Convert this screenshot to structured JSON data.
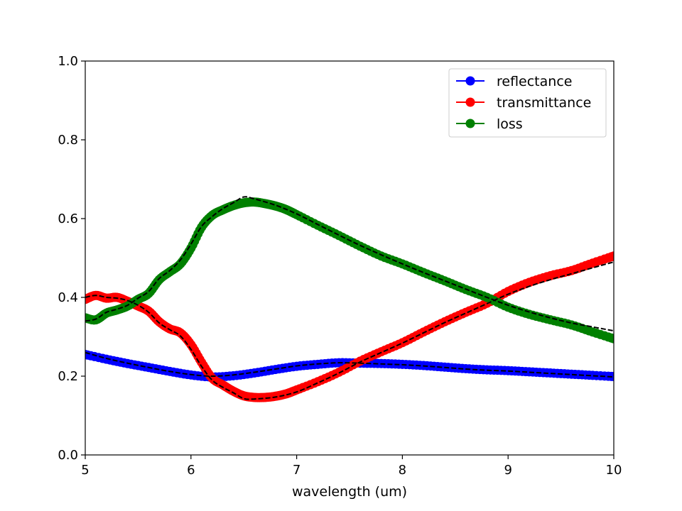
{
  "chart_data": {
    "type": "line",
    "title": "",
    "xlabel": "wavelength (um)",
    "ylabel": "",
    "xlim": [
      5,
      10
    ],
    "ylim": [
      0.0,
      1.0
    ],
    "xticks": [
      "5",
      "6",
      "7",
      "8",
      "9",
      "10"
    ],
    "yticks": [
      "0.0",
      "0.2",
      "0.4",
      "0.6",
      "0.8",
      "1.0"
    ],
    "grid": false,
    "legend_position": "top-right",
    "series": [
      {
        "name": "reflectance",
        "color": "#0000ff",
        "marker": "circle",
        "x": [
          5.0,
          5.2,
          5.4,
          5.6,
          5.8,
          6.0,
          6.2,
          6.4,
          6.6,
          6.8,
          7.0,
          7.2,
          7.4,
          7.6,
          7.8,
          8.0,
          8.2,
          8.4,
          8.6,
          8.8,
          9.0,
          9.2,
          9.4,
          9.6,
          9.8,
          10.0
        ],
        "y": [
          0.255,
          0.243,
          0.232,
          0.222,
          0.212,
          0.203,
          0.198,
          0.201,
          0.208,
          0.217,
          0.225,
          0.23,
          0.234,
          0.233,
          0.232,
          0.23,
          0.227,
          0.223,
          0.219,
          0.216,
          0.214,
          0.211,
          0.208,
          0.205,
          0.202,
          0.199
        ]
      },
      {
        "name": "transmittance",
        "color": "#ff0000",
        "marker": "circle",
        "x": [
          5.0,
          5.1,
          5.2,
          5.3,
          5.4,
          5.5,
          5.6,
          5.7,
          5.8,
          5.9,
          6.0,
          6.1,
          6.2,
          6.3,
          6.4,
          6.5,
          6.6,
          6.7,
          6.8,
          6.9,
          7.0,
          7.2,
          7.4,
          7.6,
          7.8,
          8.0,
          8.2,
          8.4,
          8.6,
          8.8,
          9.0,
          9.2,
          9.4,
          9.6,
          9.8,
          10.0
        ],
        "y": [
          0.395,
          0.405,
          0.398,
          0.4,
          0.39,
          0.378,
          0.365,
          0.338,
          0.32,
          0.31,
          0.28,
          0.235,
          0.195,
          0.178,
          0.162,
          0.15,
          0.146,
          0.146,
          0.149,
          0.155,
          0.165,
          0.186,
          0.21,
          0.238,
          0.262,
          0.285,
          0.312,
          0.338,
          0.362,
          0.385,
          0.415,
          0.438,
          0.455,
          0.468,
          0.487,
          0.505
        ]
      },
      {
        "name": "loss",
        "color": "#008000",
        "marker": "circle",
        "x": [
          5.0,
          5.1,
          5.2,
          5.3,
          5.4,
          5.5,
          5.6,
          5.7,
          5.8,
          5.9,
          6.0,
          6.1,
          6.2,
          6.3,
          6.4,
          6.5,
          6.6,
          6.7,
          6.8,
          6.9,
          7.0,
          7.2,
          7.4,
          7.6,
          7.8,
          8.0,
          8.2,
          8.4,
          8.6,
          8.8,
          9.0,
          9.2,
          9.4,
          9.6,
          9.8,
          10.0
        ],
        "y": [
          0.348,
          0.343,
          0.36,
          0.368,
          0.378,
          0.395,
          0.41,
          0.445,
          0.465,
          0.485,
          0.525,
          0.578,
          0.608,
          0.622,
          0.633,
          0.64,
          0.642,
          0.638,
          0.632,
          0.623,
          0.61,
          0.583,
          0.557,
          0.53,
          0.505,
          0.485,
          0.463,
          0.442,
          0.42,
          0.4,
          0.375,
          0.357,
          0.343,
          0.33,
          0.312,
          0.295
        ]
      },
      {
        "name": "",
        "color": "#000000",
        "style": "dashed",
        "x": [
          5.0,
          5.2,
          5.4,
          5.6,
          5.8,
          6.0,
          6.2,
          6.4,
          6.6,
          6.8,
          7.0,
          7.2,
          7.4,
          7.6,
          7.8,
          8.0,
          8.2,
          8.4,
          8.6,
          8.8,
          9.0,
          9.2,
          9.4,
          9.6,
          9.8,
          10.0
        ],
        "y": [
          0.26,
          0.245,
          0.233,
          0.222,
          0.212,
          0.204,
          0.2,
          0.203,
          0.21,
          0.218,
          0.226,
          0.231,
          0.234,
          0.233,
          0.231,
          0.229,
          0.226,
          0.222,
          0.218,
          0.215,
          0.213,
          0.21,
          0.207,
          0.204,
          0.201,
          0.198
        ]
      },
      {
        "name": "",
        "color": "#000000",
        "style": "dashed",
        "x": [
          5.0,
          5.1,
          5.2,
          5.3,
          5.4,
          5.5,
          5.6,
          5.7,
          5.8,
          5.9,
          6.0,
          6.1,
          6.2,
          6.3,
          6.4,
          6.5,
          6.6,
          6.8,
          7.0,
          7.2,
          7.4,
          7.6,
          7.8,
          8.0,
          8.2,
          8.4,
          8.6,
          8.8,
          9.0,
          9.2,
          9.4,
          9.6,
          9.8,
          10.0
        ],
        "y": [
          0.4,
          0.405,
          0.4,
          0.398,
          0.392,
          0.38,
          0.362,
          0.335,
          0.318,
          0.302,
          0.268,
          0.225,
          0.19,
          0.172,
          0.158,
          0.143,
          0.142,
          0.147,
          0.16,
          0.183,
          0.208,
          0.236,
          0.26,
          0.284,
          0.31,
          0.336,
          0.36,
          0.384,
          0.408,
          0.428,
          0.445,
          0.46,
          0.475,
          0.49
        ]
      },
      {
        "name": "",
        "color": "#000000",
        "style": "dashed",
        "x": [
          5.0,
          5.1,
          5.2,
          5.3,
          5.4,
          5.5,
          5.6,
          5.7,
          5.8,
          5.9,
          6.0,
          6.1,
          6.2,
          6.3,
          6.4,
          6.5,
          6.6,
          6.8,
          7.0,
          7.2,
          7.4,
          7.6,
          7.8,
          8.0,
          8.2,
          8.4,
          8.6,
          8.8,
          9.0,
          9.2,
          9.4,
          9.6,
          9.8,
          10.0
        ],
        "y": [
          0.34,
          0.345,
          0.362,
          0.37,
          0.38,
          0.398,
          0.415,
          0.448,
          0.468,
          0.495,
          0.535,
          0.58,
          0.605,
          0.625,
          0.64,
          0.655,
          0.65,
          0.634,
          0.612,
          0.585,
          0.558,
          0.532,
          0.508,
          0.485,
          0.463,
          0.442,
          0.421,
          0.4,
          0.38,
          0.363,
          0.348,
          0.335,
          0.325,
          0.315
        ]
      }
    ]
  }
}
